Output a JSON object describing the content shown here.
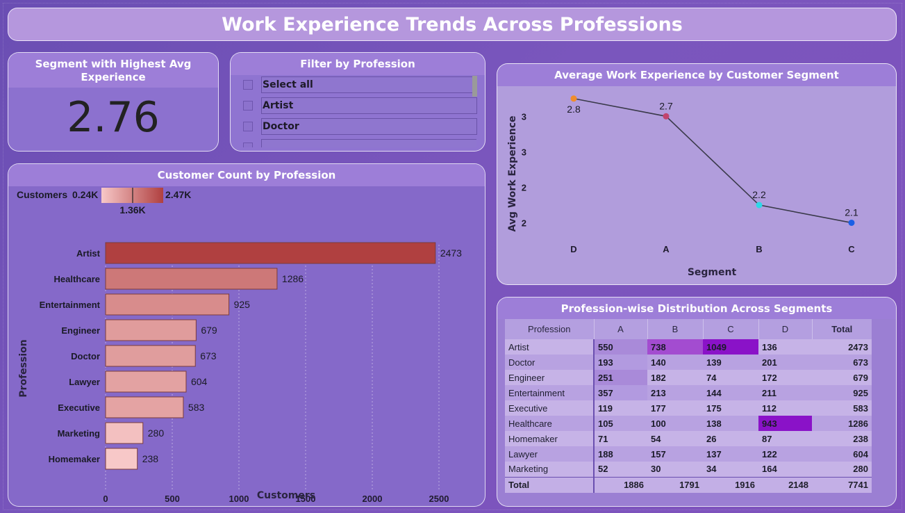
{
  "title": "Work Experience Trends Across Professions",
  "kpi": {
    "label": "Segment with Highest Avg Experience",
    "value": "2.76"
  },
  "filter": {
    "title": "Filter by Profession",
    "items": [
      "Select all",
      "Artist",
      "Doctor"
    ]
  },
  "count_chart": {
    "title": "Customer Count by Profession",
    "legend_label": "Customers",
    "legend_min": "0.24K",
    "legend_max": "2.47K",
    "legend_mid": "1.36K",
    "colors": {
      "low": "#f7c8c8",
      "high": "#b04040",
      "border": "#7a3b3b"
    }
  },
  "line_chart": {
    "title": "Average Work Experience by Customer Segment",
    "colors": {
      "line": "#3a3a4a",
      "D": "#f08c2a",
      "A": "#c2446e",
      "B": "#2fd8e8",
      "C": "#1a5fe6"
    }
  },
  "matrix": {
    "title": "Profession-wise Distribution Across Segments",
    "columns": [
      "Profession",
      "A",
      "B",
      "C",
      "D",
      "Total"
    ],
    "rows": [
      [
        "Artist",
        "550",
        "738",
        "1049",
        "136",
        "2473"
      ],
      [
        "Doctor",
        "193",
        "140",
        "139",
        "201",
        "673"
      ],
      [
        "Engineer",
        "251",
        "182",
        "74",
        "172",
        "679"
      ],
      [
        "Entertainment",
        "357",
        "213",
        "144",
        "211",
        "925"
      ],
      [
        "Executive",
        "119",
        "177",
        "175",
        "112",
        "583"
      ],
      [
        "Healthcare",
        "105",
        "100",
        "138",
        "943",
        "1286"
      ],
      [
        "Homemaker",
        "71",
        "54",
        "26",
        "87",
        "238"
      ],
      [
        "Lawyer",
        "188",
        "157",
        "137",
        "122",
        "604"
      ],
      [
        "Marketing",
        "52",
        "30",
        "34",
        "164",
        "280"
      ]
    ],
    "totals": [
      "Total",
      "1886",
      "1791",
      "1916",
      "2148",
      "7741"
    ],
    "colors": {
      "heat_high": "#8a12c8",
      "heat_mid": "#a34cd0",
      "heat_low": "#c9b4e6"
    }
  },
  "chart_data": [
    {
      "type": "bar",
      "orientation": "horizontal",
      "title": "Customer Count by Profession",
      "xlabel": "Customers",
      "ylabel": "Profession",
      "categories": [
        "Artist",
        "Healthcare",
        "Entertainment",
        "Engineer",
        "Doctor",
        "Lawyer",
        "Executive",
        "Marketing",
        "Homemaker"
      ],
      "values": [
        2473,
        1286,
        925,
        679,
        673,
        604,
        583,
        280,
        238
      ],
      "xlim": [
        0,
        2700
      ],
      "xticks": [
        0,
        500,
        1000,
        1500,
        2000,
        2500
      ],
      "grid": true
    },
    {
      "type": "line",
      "title": "Average Work Experience by Customer Segment",
      "xlabel": "Segment",
      "ylabel": "Avg Work Experience",
      "categories": [
        "D",
        "A",
        "B",
        "C"
      ],
      "values": [
        2.8,
        2.7,
        2.2,
        2.1
      ],
      "data_labels": [
        "2.8",
        "2.7",
        "2.2",
        "2.1"
      ],
      "ylim": [
        2.0,
        2.85
      ],
      "yticks": [
        2.1,
        2.3,
        2.5,
        2.7
      ],
      "ytick_labels": [
        "2",
        "2",
        "3",
        "3"
      ],
      "grid": false
    }
  ]
}
